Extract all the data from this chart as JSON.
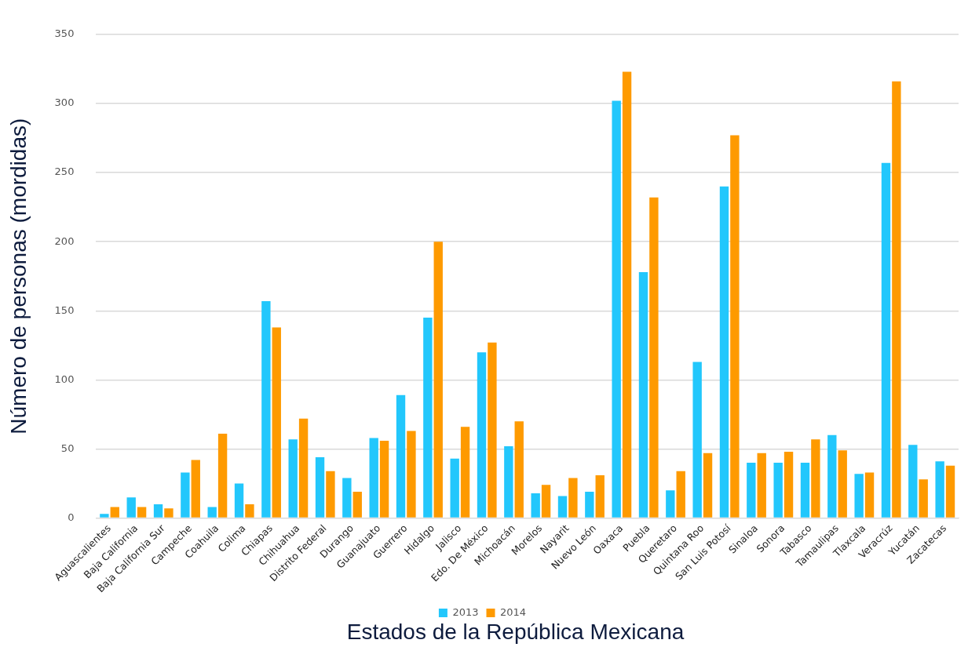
{
  "chart_data": {
    "type": "bar",
    "xlabel": "Estados de la República Mexicana",
    "ylabel": "Número de personas (mordidas)",
    "categories": [
      "Aguascalientes",
      "Baja California",
      "Baja California Sur",
      "Campeche",
      "Coahuila",
      "Colima",
      "Chiapas",
      "Chihuahua",
      "Distrito Federal",
      "Durango",
      "Guanajuato",
      "Guerrero",
      "Hidalgo",
      "Jalisco",
      "Edo. De México",
      "Michoacán",
      "Morelos",
      "Nayarit",
      "Nuevo León",
      "Oaxaca",
      "Puebla",
      "Queretaro",
      "Quintana Roo",
      "San Luis Potosí",
      "Sinaloa",
      "Sonora",
      "Tabasco",
      "Tamaulipas",
      "Tlaxcala",
      "Veracrúz",
      "Yucatán",
      "Zacatecas"
    ],
    "series": [
      {
        "name": "2013",
        "color": "#22c7fc",
        "values": [
          3,
          15,
          10,
          33,
          8,
          25,
          157,
          57,
          44,
          29,
          58,
          89,
          145,
          43,
          120,
          52,
          18,
          16,
          19,
          302,
          178,
          20,
          113,
          240,
          40,
          40,
          40,
          60,
          32,
          257,
          53,
          41
        ]
      },
      {
        "name": "2014",
        "color": "#fe9a00",
        "values": [
          8,
          8,
          7,
          42,
          61,
          10,
          138,
          72,
          34,
          19,
          56,
          63,
          200,
          66,
          127,
          70,
          24,
          29,
          31,
          323,
          232,
          34,
          47,
          277,
          47,
          48,
          57,
          49,
          33,
          316,
          28,
          38
        ]
      }
    ],
    "ylim": [
      0,
      350
    ],
    "yticks": [
      0,
      50,
      100,
      150,
      200,
      250,
      300,
      350
    ],
    "grid": "y",
    "legend": "bottom"
  }
}
